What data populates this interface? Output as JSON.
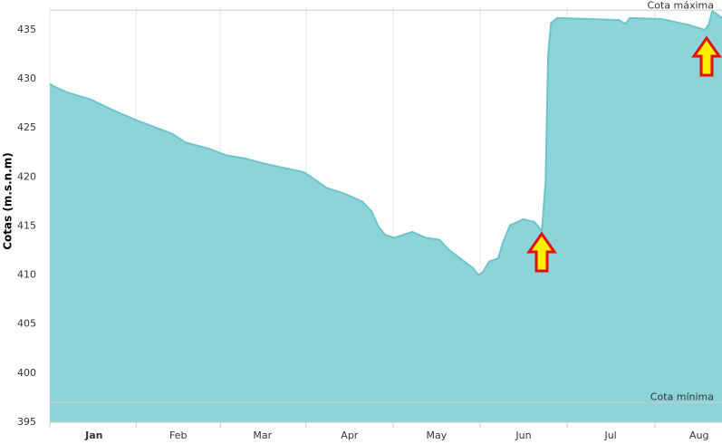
{
  "chart_data": {
    "type": "area",
    "y_label": "Cotas (m.s.n.m)",
    "x": [
      0,
      1.6,
      6.3,
      14.3,
      22.2,
      30.2,
      36.5,
      42.9,
      47.6,
      55.6,
      61.9,
      68.3,
      74.6,
      82.5,
      88.9,
      92.1,
      96.8,
      103.2,
      109.5,
      112.7,
      115.2,
      117.5,
      120.6,
      127,
      131.7,
      136.5,
      139.7,
      145.1,
      148.3,
      150.2,
      151.7,
      154,
      157.1,
      158.7,
      161.3,
      166,
      169.8,
      172.4,
      173.7,
      174.6,
      175.6,
      177.8,
      188.9,
      199.4,
      201.6,
      203.2,
      214.3,
      223.8,
      229.5,
      230.8,
      232.1,
      233.7,
      235.5
    ],
    "values": [
      429.5,
      429.2,
      428.6,
      427.9,
      426.8,
      425.8,
      425.1,
      424.4,
      423.5,
      422.9,
      422.2,
      421.9,
      421.4,
      420.9,
      420.5,
      419.9,
      418.9,
      418.3,
      417.5,
      416.5,
      414.9,
      414.1,
      413.8,
      414.4,
      413.8,
      413.6,
      412.6,
      411.4,
      410.7,
      410.0,
      410.3,
      411.4,
      411.7,
      413.3,
      415.1,
      415.7,
      415.4,
      414.5,
      419.6,
      432.5,
      435.7,
      436.2,
      436.1,
      436.0,
      435.6,
      436.2,
      436.1,
      435.5,
      435.0,
      435.5,
      436.9,
      436.6,
      436.2
    ],
    "color": "#8dd4d9",
    "line_color": "#6cc4cc",
    "xlim": [
      0,
      235.5
    ],
    "xticks": [
      {
        "value": 15.5,
        "label": "Jan"
      },
      {
        "value": 45,
        "label": "Feb"
      },
      {
        "value": 74.5,
        "label": "Mar"
      },
      {
        "value": 105,
        "label": "Apr"
      },
      {
        "value": 135.5,
        "label": "May"
      },
      {
        "value": 166,
        "label": "Jun"
      },
      {
        "value": 196.5,
        "label": "Jul"
      },
      {
        "value": 227.5,
        "label": "Aug"
      }
    ],
    "ylim": [
      395,
      437.3
    ],
    "yticks": [
      395,
      400,
      405,
      410,
      415,
      420,
      425,
      430,
      435
    ],
    "reference_lines": [
      {
        "label": "Cota máxima",
        "value": 437
      },
      {
        "label": "Cota mínima",
        "value": 397
      }
    ]
  }
}
